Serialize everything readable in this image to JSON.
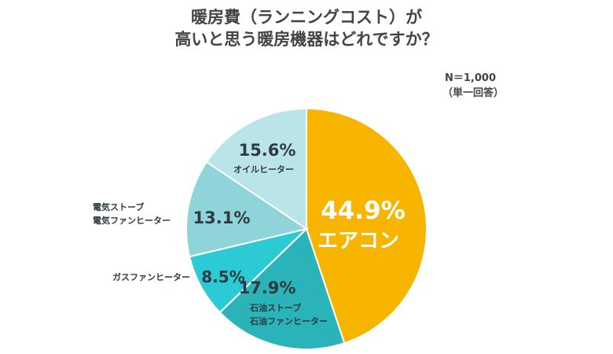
{
  "title": {
    "line1": "暖房費（ランニングコスト）が",
    "line2": "高いと思う暖房機器はどれですか？"
  },
  "note": {
    "n": "N＝1,000",
    "type": "（単一回答）"
  },
  "chart_data": {
    "type": "pie",
    "start": "12 o'clock, clockwise",
    "slices": [
      {
        "label": "エアコン",
        "value": 44.9,
        "value_label": "44.9%",
        "color": "#F7B500"
      },
      {
        "label_lines": [
          "石油ストーブ",
          "石油ファンヒーター"
        ],
        "value": 17.9,
        "value_label": "17.9%",
        "color": "#2AB4B9"
      },
      {
        "label": "ガスファンヒーター",
        "value": 8.5,
        "value_label": "8.5%",
        "color": "#2BCAD4"
      },
      {
        "label_lines": [
          "電気ストーブ",
          "電気ファンヒーター"
        ],
        "value": 13.1,
        "value_label": "13.1%",
        "color": "#8FD4D8"
      },
      {
        "label": "オイルヒーター",
        "value": 15.6,
        "value_label": "15.6%",
        "color": "#BAE5E8"
      }
    ]
  }
}
